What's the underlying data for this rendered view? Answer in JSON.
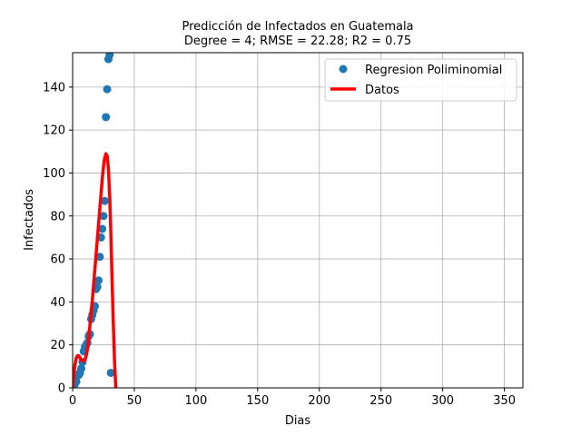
{
  "chart_data": {
    "type": "scatter",
    "title": "Predicción de Infectados en  Guatemala",
    "subtitle": "Degree = 4; RMSE = 22.28; R2 = 0.75",
    "xlabel": "Dias",
    "ylabel": "Infectados",
    "xlim": [
      0,
      365
    ],
    "ylim": [
      0,
      156
    ],
    "xticks": [
      0,
      50,
      100,
      150,
      200,
      250,
      300,
      350
    ],
    "yticks": [
      0,
      20,
      40,
      60,
      80,
      100,
      120,
      140
    ],
    "grid": true,
    "legend_position": "top-right",
    "legend": [
      {
        "label": "Regresion Poliminomial",
        "kind": "marker",
        "color": "#1f77b4"
      },
      {
        "label": "Datos",
        "kind": "line",
        "color": "#ff0000"
      }
    ],
    "series": [
      {
        "kind": "scatter",
        "color": "#1f77b4",
        "points": [
          [
            1,
            1
          ],
          [
            2,
            2
          ],
          [
            3,
            3
          ],
          [
            4,
            6
          ],
          [
            5,
            6
          ],
          [
            6,
            7
          ],
          [
            7,
            9
          ],
          [
            8,
            12
          ],
          [
            9,
            17
          ],
          [
            10,
            19
          ],
          [
            11,
            20
          ],
          [
            12,
            21
          ],
          [
            13,
            24
          ],
          [
            14,
            25
          ],
          [
            15,
            32
          ],
          [
            16,
            34
          ],
          [
            17,
            36
          ],
          [
            18,
            38
          ],
          [
            19,
            46
          ],
          [
            20,
            47
          ],
          [
            21,
            50
          ],
          [
            22,
            61
          ],
          [
            23,
            70
          ],
          [
            24,
            74
          ],
          [
            25,
            80
          ],
          [
            26,
            87
          ],
          [
            27,
            126
          ],
          [
            28,
            139
          ],
          [
            29,
            153
          ],
          [
            30,
            155
          ],
          [
            31,
            7
          ]
        ]
      },
      {
        "kind": "line",
        "color": "#ff0000",
        "points": [
          [
            0,
            0
          ],
          [
            1,
            6
          ],
          [
            2,
            11
          ],
          [
            3,
            14
          ],
          [
            4,
            15
          ],
          [
            5,
            15
          ],
          [
            6,
            14
          ],
          [
            7,
            13
          ],
          [
            8,
            12.5
          ],
          [
            9,
            12.5
          ],
          [
            10,
            13
          ],
          [
            11,
            15
          ],
          [
            12,
            18
          ],
          [
            13,
            23
          ],
          [
            14,
            29
          ],
          [
            15,
            35
          ],
          [
            16,
            41
          ],
          [
            17,
            48
          ],
          [
            18,
            55
          ],
          [
            19,
            62
          ],
          [
            20,
            69
          ],
          [
            21,
            76
          ],
          [
            22,
            83
          ],
          [
            23,
            90
          ],
          [
            24,
            97
          ],
          [
            25,
            103
          ],
          [
            26,
            107
          ],
          [
            27,
            109
          ],
          [
            28,
            108
          ],
          [
            29,
            102
          ],
          [
            30,
            90
          ],
          [
            31,
            72
          ],
          [
            32,
            50
          ],
          [
            33,
            30
          ],
          [
            34,
            12
          ],
          [
            35,
            0
          ]
        ]
      }
    ]
  }
}
